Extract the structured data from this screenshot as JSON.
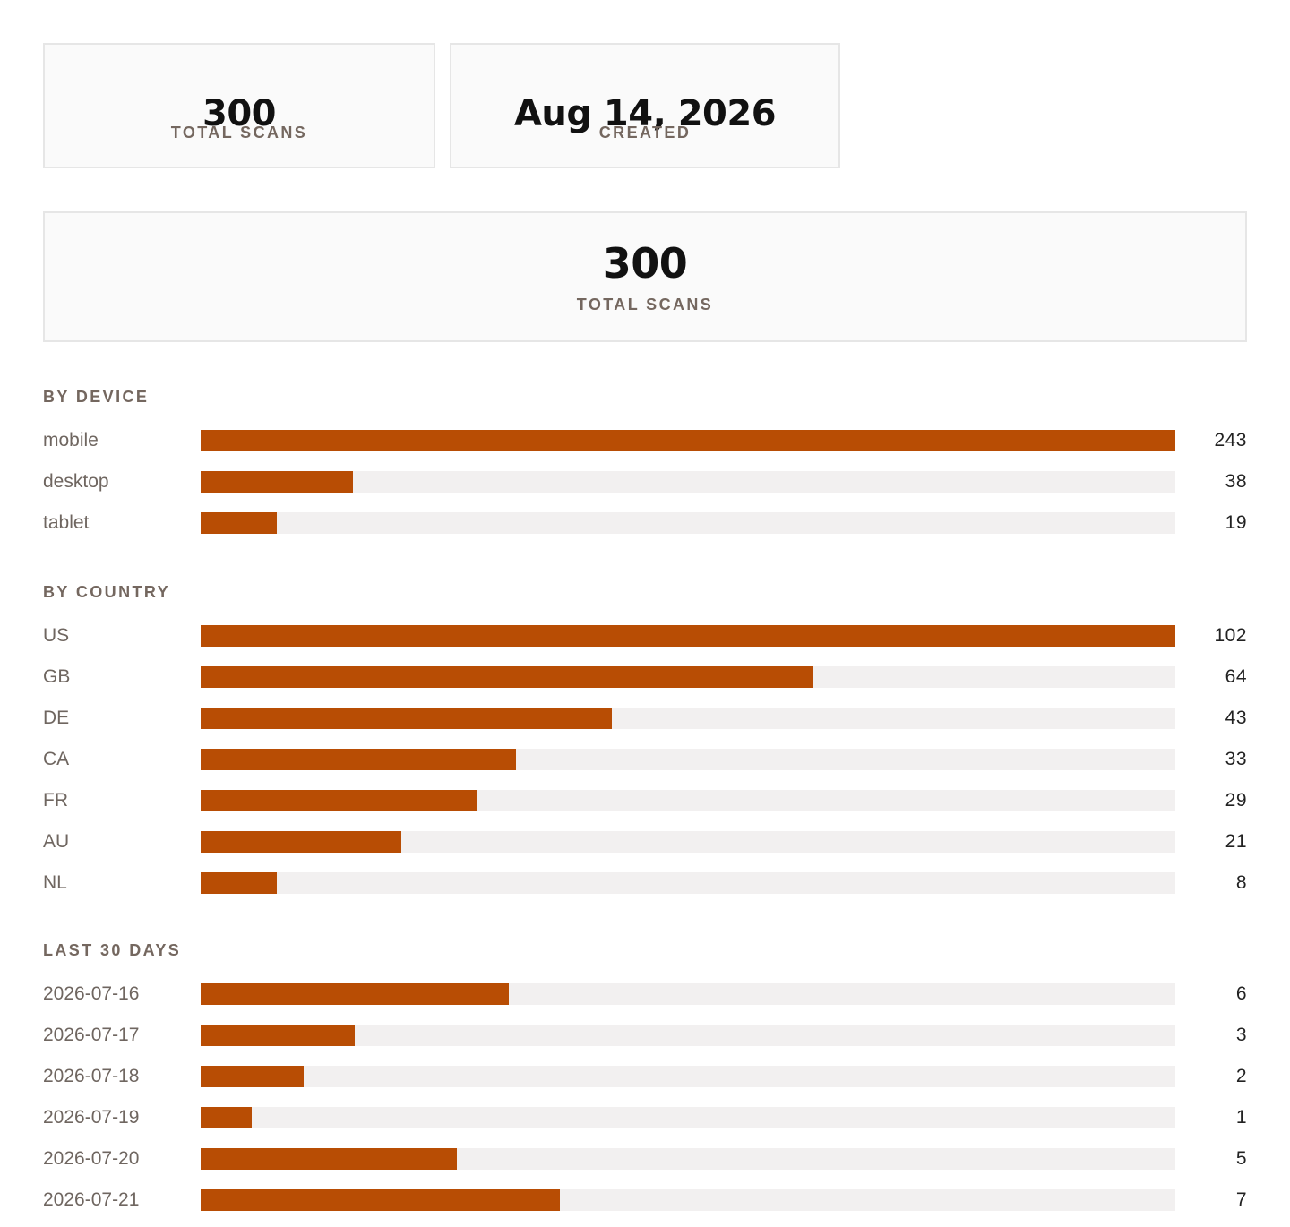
{
  "summary": {
    "total_scans_value": "300",
    "total_scans_label": "TOTAL SCANS",
    "created_value": "Aug 14, 2026",
    "created_label": "CREATED"
  },
  "totals_panel": {
    "value": "300",
    "label": "TOTAL SCANS"
  },
  "colors": {
    "bar_fill": "#b84d04",
    "bar_track": "#f2f0f0",
    "muted_text": "#74675f"
  },
  "sections": [
    {
      "title": "BY DEVICE",
      "max": 243,
      "rows": [
        {
          "label": "mobile",
          "value": 243
        },
        {
          "label": "desktop",
          "value": 38
        },
        {
          "label": "tablet",
          "value": 19
        }
      ]
    },
    {
      "title": "BY COUNTRY",
      "max": 102,
      "rows": [
        {
          "label": "US",
          "value": 102
        },
        {
          "label": "GB",
          "value": 64
        },
        {
          "label": "DE",
          "value": 43
        },
        {
          "label": "CA",
          "value": 33
        },
        {
          "label": "FR",
          "value": 29
        },
        {
          "label": "AU",
          "value": 21
        },
        {
          "label": "NL",
          "value": 8
        }
      ]
    },
    {
      "title": "LAST 30 DAYS",
      "max": 19,
      "rows": [
        {
          "label": "2026-07-16",
          "value": 6
        },
        {
          "label": "2026-07-17",
          "value": 3
        },
        {
          "label": "2026-07-18",
          "value": 2
        },
        {
          "label": "2026-07-19",
          "value": 1
        },
        {
          "label": "2026-07-20",
          "value": 5
        },
        {
          "label": "2026-07-21",
          "value": 7
        }
      ]
    }
  ]
}
